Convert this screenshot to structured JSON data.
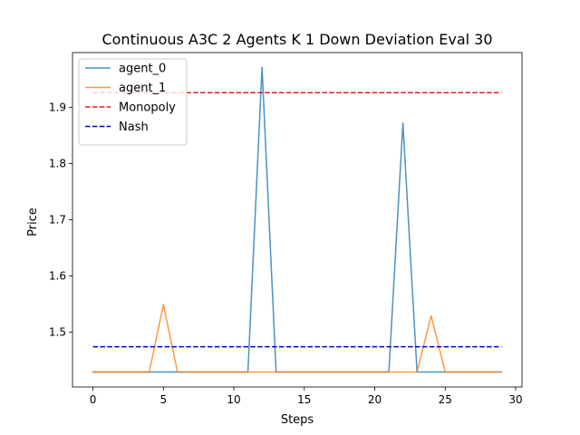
{
  "chart_data": {
    "type": "line",
    "title": "Continuous A3C 2 Agents K 1 Down Deviation Eval 30",
    "xlabel": "Steps",
    "ylabel": "Price",
    "xlim": [
      -1.45,
      30.45
    ],
    "ylim": [
      1.4024,
      1.9973
    ],
    "xticks": [
      0,
      5,
      10,
      15,
      20,
      25,
      30
    ],
    "xtick_labels": [
      "0",
      "5",
      "10",
      "15",
      "20",
      "25",
      "30"
    ],
    "yticks": [
      1.5,
      1.6,
      1.7,
      1.8,
      1.9
    ],
    "ytick_labels": [
      "1.5",
      "1.6",
      "1.7",
      "1.8",
      "1.9"
    ],
    "grid": false,
    "legend_placement": "top-left",
    "x": [
      0,
      1,
      2,
      3,
      4,
      5,
      6,
      7,
      8,
      9,
      10,
      11,
      12,
      13,
      14,
      15,
      16,
      17,
      18,
      19,
      20,
      21,
      22,
      23,
      24,
      25,
      26,
      27,
      28,
      29
    ],
    "series": [
      {
        "name": "agent_0",
        "color": "#1f77b4",
        "style": "solid",
        "values": [
          1.429,
          1.429,
          1.429,
          1.429,
          1.429,
          1.429,
          1.429,
          1.429,
          1.429,
          1.429,
          1.429,
          1.429,
          1.971,
          1.429,
          1.429,
          1.429,
          1.429,
          1.429,
          1.429,
          1.429,
          1.429,
          1.429,
          1.872,
          1.429,
          1.429,
          1.429,
          1.429,
          1.429,
          1.429,
          1.429
        ]
      },
      {
        "name": "agent_1",
        "color": "#ff7f0e",
        "style": "solid",
        "values": [
          1.429,
          1.429,
          1.429,
          1.429,
          1.429,
          1.549,
          1.429,
          1.429,
          1.429,
          1.429,
          1.429,
          1.429,
          1.429,
          1.429,
          1.429,
          1.429,
          1.429,
          1.429,
          1.429,
          1.429,
          1.429,
          1.429,
          1.429,
          1.429,
          1.529,
          1.429,
          1.429,
          1.429,
          1.429,
          1.429
        ]
      },
      {
        "name": "Monopoly",
        "color": "#e41a1c",
        "style": "dashed",
        "values": [
          1.926,
          1.926,
          1.926,
          1.926,
          1.926,
          1.926,
          1.926,
          1.926,
          1.926,
          1.926,
          1.926,
          1.926,
          1.926,
          1.926,
          1.926,
          1.926,
          1.926,
          1.926,
          1.926,
          1.926,
          1.926,
          1.926,
          1.926,
          1.926,
          1.926,
          1.926,
          1.926,
          1.926,
          1.926,
          1.926
        ]
      },
      {
        "name": "Nash",
        "color": "#0000cc",
        "style": "dashed",
        "values": [
          1.474,
          1.474,
          1.474,
          1.474,
          1.474,
          1.474,
          1.474,
          1.474,
          1.474,
          1.474,
          1.474,
          1.474,
          1.474,
          1.474,
          1.474,
          1.474,
          1.474,
          1.474,
          1.474,
          1.474,
          1.474,
          1.474,
          1.474,
          1.474,
          1.474,
          1.474,
          1.474,
          1.474,
          1.474,
          1.474
        ]
      }
    ]
  }
}
